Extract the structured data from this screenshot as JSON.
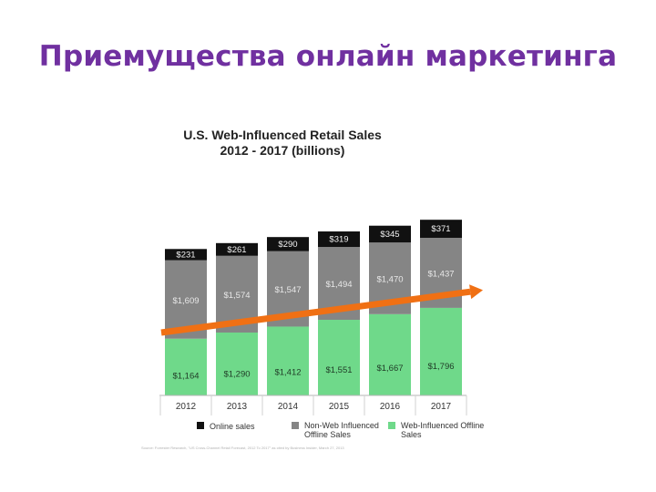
{
  "slide": {
    "title": "Приемущества онлайн маркетинга"
  },
  "chart_data": {
    "type": "bar",
    "stacked": true,
    "title": "U.S. Web-Influenced Retail Sales",
    "subtitle": "2012 - 2017  (billions)",
    "categories": [
      "2012",
      "2013",
      "2014",
      "2015",
      "2016",
      "2017"
    ],
    "series": [
      {
        "name": "Web-Influenced Offline Sales",
        "color": "#6fd98a",
        "labelColor": "#1f3a26",
        "values": [
          1164,
          1290,
          1412,
          1551,
          1667,
          1796
        ],
        "labels": [
          "$1,164",
          "$1,290",
          "$1,412",
          "$1,551",
          "$1,667",
          "$1,796"
        ]
      },
      {
        "name": "Non-Web Influenced Offline Sales",
        "color": "#858585",
        "labelColor": "#e8e8e8",
        "values": [
          1609,
          1574,
          1547,
          1494,
          1470,
          1437
        ],
        "labels": [
          "$1,609",
          "$1,574",
          "$1,547",
          "$1,494",
          "$1,470",
          "$1,437"
        ]
      },
      {
        "name": "Online sales",
        "color": "#111111",
        "labelColor": "#f2f2f2",
        "values": [
          231,
          261,
          290,
          319,
          345,
          371
        ],
        "labels": [
          "$231",
          "$261",
          "$290",
          "$319",
          "$345",
          "$371"
        ]
      }
    ],
    "legend": {
      "position": "bottom",
      "items": [
        {
          "label": "Online sales",
          "color": "#111111"
        },
        {
          "label": "Non-Web Influenced Offline Sales",
          "color": "#858585"
        },
        {
          "label": "Web-Influenced Offline Sales",
          "color": "#6fd98a"
        }
      ]
    },
    "trend_arrow": {
      "color": "#f07014"
    },
    "source": "Source: Forrester Research, \"US Cross-Channel Retail Forecast, 2012 To 2017\" as cited by Business Insider, March 27, 2013"
  }
}
